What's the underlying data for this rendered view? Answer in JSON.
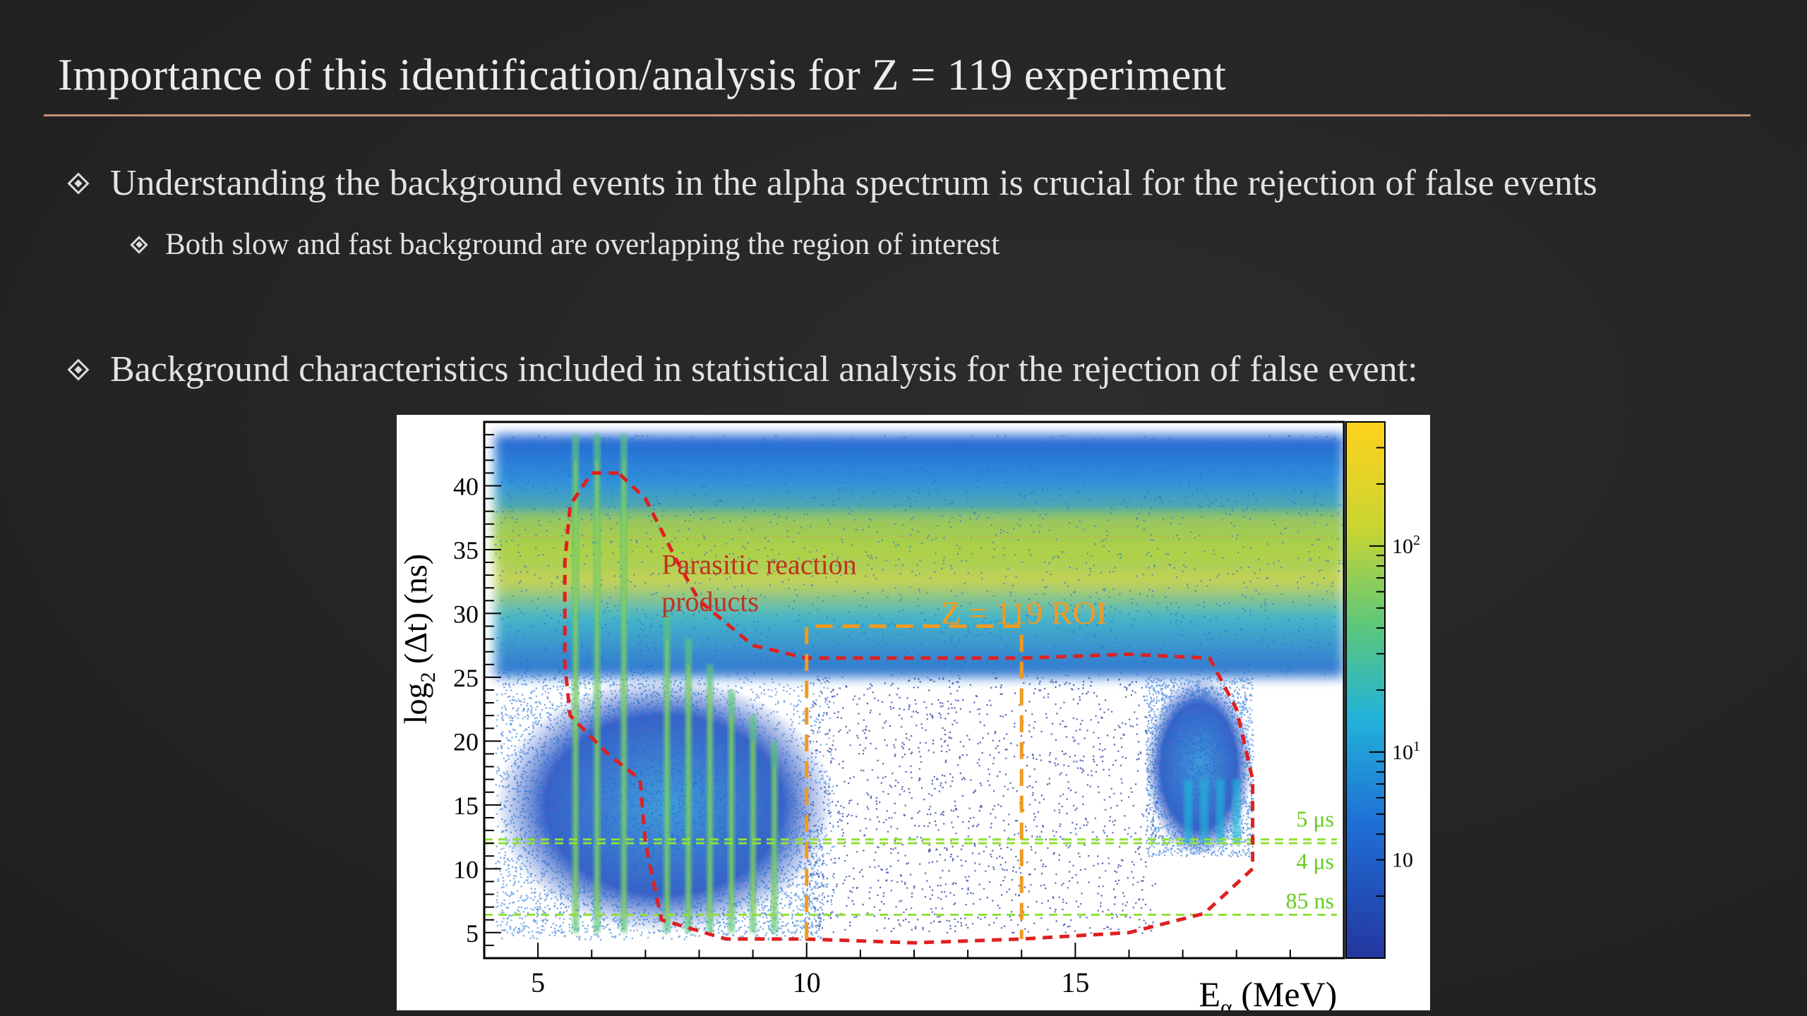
{
  "slide": {
    "title": "Importance of this identification/analysis for Z = 119 experiment",
    "bullets": [
      {
        "text": "Understanding the background events in the alpha spectrum is crucial for the rejection of false events",
        "level": 1
      },
      {
        "text": "Both slow and fast background are overlapping the region of interest",
        "level": 2
      },
      {
        "text": "Background characteristics included in statistical analysis for the rejection of false event:",
        "level": 1
      }
    ],
    "colors": {
      "background": "#262626",
      "title_rule": "#c98f7c",
      "text": "#e2e2e2"
    }
  },
  "chart_data": {
    "type": "heatmap",
    "xlabel": "E",
    "xlabel_sub": "α",
    "xlabel_unit": "(MeV)",
    "ylabel": "log",
    "ylabel_sub": "2",
    "ylabel_rest": "(Δt) (ns)",
    "xlim": [
      4,
      20
    ],
    "ylim": [
      3,
      45
    ],
    "x_ticks": [
      5,
      10,
      15
    ],
    "y_ticks": [
      5,
      10,
      15,
      20,
      25,
      30,
      35,
      40
    ],
    "colorbar": {
      "scale": "log",
      "labels": [
        {
          "value": 100,
          "text": "10",
          "sup": "2"
        },
        {
          "value": 10,
          "text": "10",
          "sup": "1"
        },
        {
          "value": 3,
          "text": "10",
          "sup": ""
        }
      ],
      "colors": [
        "#23369e",
        "#1f6fd6",
        "#22b3d8",
        "#5cc77a",
        "#c9d531",
        "#ffd21c"
      ]
    },
    "density_regions": [
      {
        "name": "slow background band",
        "x": [
          4.2,
          20
        ],
        "y": [
          25,
          44
        ],
        "peak_y": 36,
        "level": "high"
      },
      {
        "name": "fast background region",
        "x": [
          4.2,
          10.5
        ],
        "y": [
          5,
          25
        ],
        "level": "medium"
      },
      {
        "name": "ROI scatter",
        "x": [
          10,
          16.5
        ],
        "y": [
          5,
          25
        ],
        "level": "low"
      },
      {
        "name": "high-energy cluster",
        "x": [
          16.3,
          18.3
        ],
        "y": [
          11,
          25
        ],
        "level": "medium"
      }
    ],
    "vertical_streaks_x": [
      5.7,
      6.1,
      6.6,
      7.4,
      7.8,
      8.2,
      8.6,
      9.0,
      9.4
    ],
    "annotations": {
      "parasitic_label_line1": "Parasitic  reaction",
      "parasitic_label_line2": "products",
      "roi_label": "Z = 119 ROI",
      "line_5us": "5 μs",
      "line_4us": "4 μs",
      "line_85ns": "85 ns"
    },
    "roi_box": {
      "x": [
        10,
        14
      ],
      "y": [
        4.5,
        29
      ]
    },
    "parasitic_contour": [
      [
        6.5,
        41
      ],
      [
        6.0,
        41
      ],
      [
        5.6,
        38.5
      ],
      [
        5.5,
        34
      ],
      [
        5.5,
        26
      ],
      [
        5.6,
        22
      ],
      [
        6.3,
        19
      ],
      [
        6.9,
        17
      ],
      [
        7.0,
        12
      ],
      [
        7.3,
        6
      ],
      [
        8.5,
        4.5
      ],
      [
        10,
        4.5
      ],
      [
        12,
        4.2
      ],
      [
        14,
        4.5
      ],
      [
        16,
        5
      ],
      [
        17.4,
        6.5
      ],
      [
        18.3,
        10
      ],
      [
        18.3,
        17
      ],
      [
        18.0,
        22.5
      ],
      [
        17.5,
        26.5
      ],
      [
        16,
        26.8
      ],
      [
        14,
        26.5
      ],
      [
        10,
        26.5
      ],
      [
        9,
        27.5
      ],
      [
        8,
        31
      ],
      [
        7.6,
        34
      ],
      [
        7.0,
        39
      ],
      [
        6.5,
        41
      ]
    ],
    "horizontal_lines": [
      {
        "label": "5 μs",
        "y": 12.3
      },
      {
        "label": "4 μs",
        "y": 12.0
      },
      {
        "label": "85 ns",
        "y": 6.4
      }
    ],
    "reference_line_y": 36,
    "colors": {
      "contour": "#e02020",
      "roi": "#f29a1f",
      "guide": "#8fe03a",
      "parasitic_text": "#c0321e",
      "roi_text": "#f29a1f",
      "guide_text": "#66cc22"
    }
  }
}
